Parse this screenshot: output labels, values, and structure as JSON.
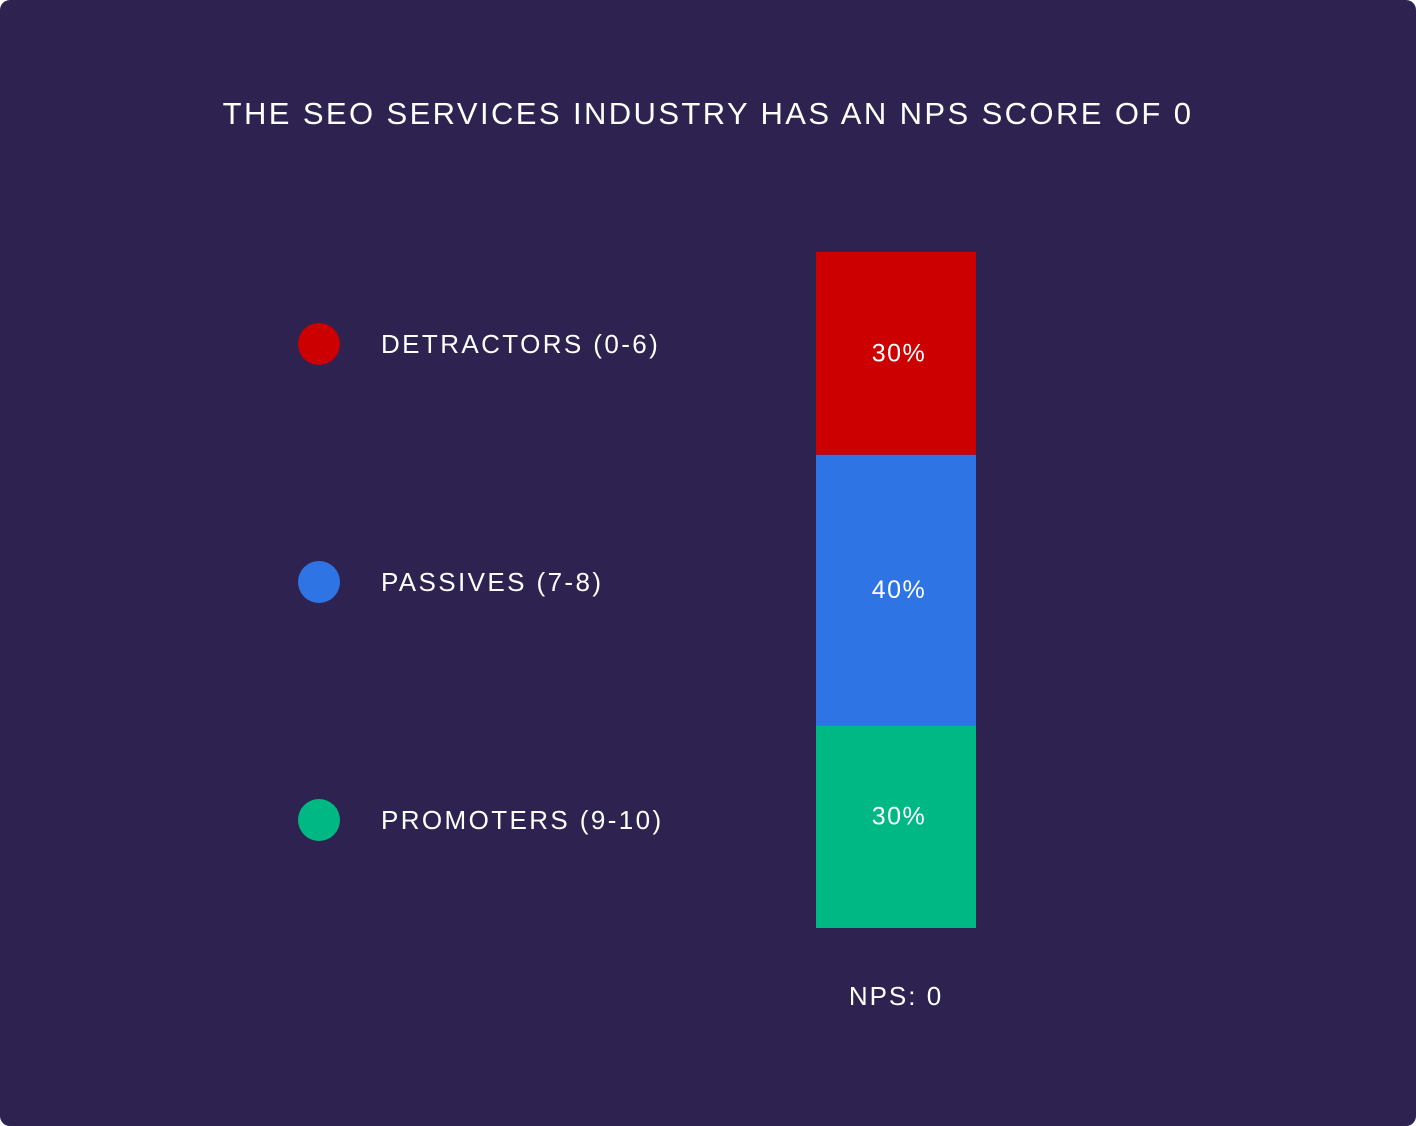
{
  "chart_data": {
    "type": "bar",
    "stacked": true,
    "orientation": "vertical",
    "title": "THE SEO SERVICES INDUSTRY HAS AN NPS SCORE OF 0",
    "unit": "%",
    "series": [
      {
        "name": "DETRACTORS (0-6)",
        "value": 30,
        "label": "30%",
        "color": "#cc0000"
      },
      {
        "name": "PASSIVES (7-8)",
        "value": 40,
        "label": "40%",
        "color": "#2f74e4"
      },
      {
        "name": "PROMOTERS (9-10)",
        "value": 30,
        "label": "30%",
        "color": "#00b884"
      }
    ],
    "legend_position": "left",
    "footer": "NPS: 0"
  },
  "colors": {
    "background": "#2e2350",
    "text": "#ffffff"
  }
}
